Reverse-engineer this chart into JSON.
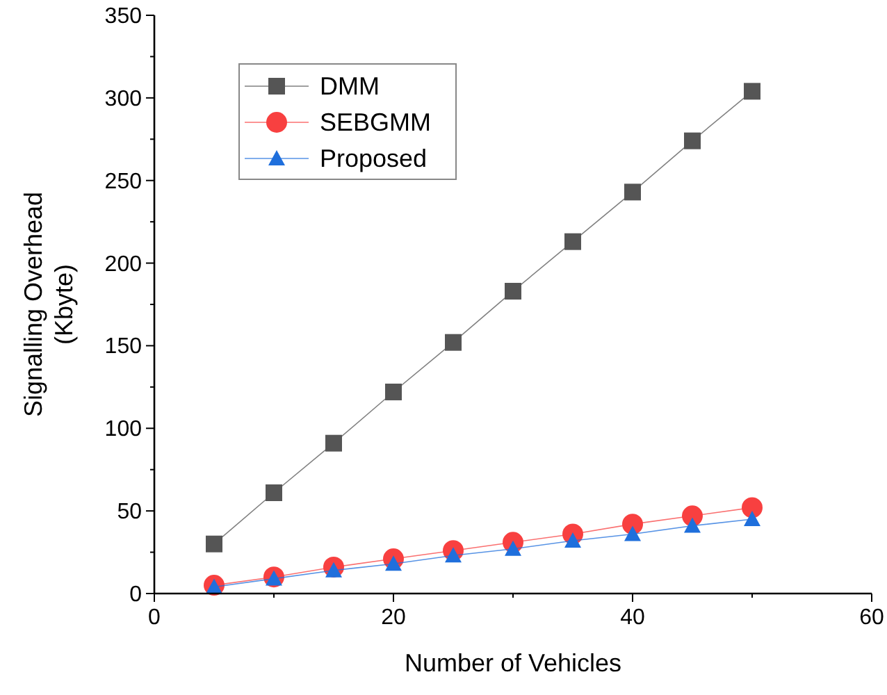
{
  "chart_data": {
    "type": "line",
    "xlabel": "Number of Vehicles",
    "ylabel": "Signalling Overhead\n(Kbyte)",
    "x": [
      5,
      10,
      15,
      20,
      25,
      30,
      35,
      40,
      45,
      50
    ],
    "series": [
      {
        "name": "DMM",
        "color": "#555555",
        "marker": "square",
        "values": [
          30,
          61,
          91,
          122,
          152,
          183,
          213,
          243,
          274,
          304
        ]
      },
      {
        "name": "SEBGMM",
        "color": "#f84040",
        "marker": "circle",
        "values": [
          5,
          10,
          16,
          21,
          26,
          31,
          36,
          42,
          47,
          52
        ]
      },
      {
        "name": "Proposed",
        "color": "#1f6fdc",
        "marker": "triangle",
        "values": [
          4,
          9,
          14,
          18,
          23,
          27,
          32,
          36,
          41,
          45
        ]
      }
    ],
    "xlim": [
      0,
      60
    ],
    "xticks": [
      0,
      {
        "value": 10,
        "label": null
      },
      20,
      {
        "value": 30,
        "label": null
      },
      40,
      {
        "value": 50,
        "label": null
      },
      60
    ],
    "ylim": [
      0,
      350
    ],
    "yticks": [
      0,
      {
        "value": 25,
        "label": null
      },
      50,
      {
        "value": 75,
        "label": null
      },
      100,
      {
        "value": 125,
        "label": null
      },
      150,
      {
        "value": 175,
        "label": null
      },
      200,
      {
        "value": 225,
        "label": null
      },
      250,
      {
        "value": 275,
        "label": null
      },
      300,
      {
        "value": 325,
        "label": null
      },
      350
    ],
    "grid": false,
    "legend": "top left",
    "line_style": "solid"
  }
}
